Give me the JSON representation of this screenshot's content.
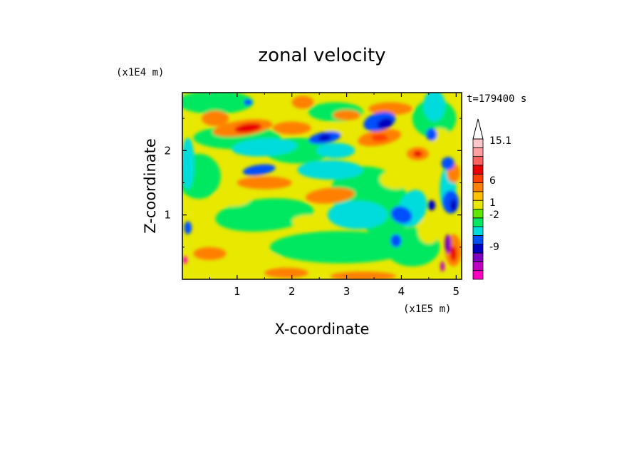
{
  "chart_data": {
    "type": "heatmap",
    "title": "zonal velocity",
    "xlabel": "X-coordinate",
    "ylabel": "Z-coordinate",
    "x_unit": "(x1E5 m)",
    "y_unit": "(x1E4 m)",
    "time_label": "t=179400 s",
    "xlim": [
      0,
      5.1
    ],
    "ylim": [
      0,
      2.9
    ],
    "x_ticks": [
      "1",
      "2",
      "3",
      "4",
      "5"
    ],
    "y_ticks": [
      "1",
      "2"
    ],
    "colorbar": {
      "tick_labels": [
        "15.1",
        "6",
        "1",
        "-2",
        "-9"
      ],
      "colors": [
        "#ff00c0",
        "#c000c0",
        "#8000c0",
        "#0000c0",
        "#0050ff",
        "#00dcdc",
        "#00e860",
        "#60e800",
        "#e8e800",
        "#ffc000",
        "#ff8000",
        "#ff4000",
        "#e80000",
        "#ff6060",
        "#ffa0a0",
        "#ffc8c8"
      ],
      "extend_top": true
    },
    "grid": false
  }
}
